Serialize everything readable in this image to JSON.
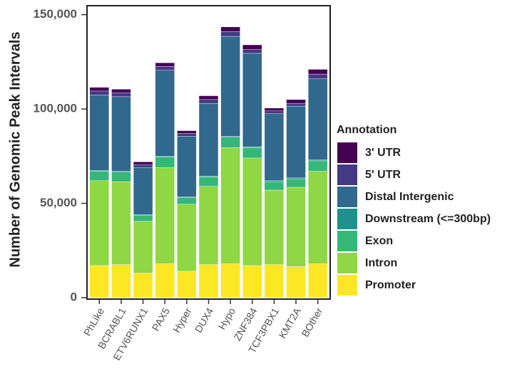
{
  "chart_data": {
    "type": "stacked_bar",
    "y_label": "Number of Genomic Peak Intervals",
    "legend_title": "Annotation",
    "categories": [
      "PhLike",
      "BCRABL1",
      "ETV6RUNX1",
      "PAX5",
      "Hyper",
      "DUX4",
      "Hypo",
      "ZNF384",
      "TCF3PBX1",
      "KMT2A",
      "BOther"
    ],
    "series": [
      {
        "name": "Promoter",
        "color": "#fde725",
        "values": [
          17000,
          17500,
          13000,
          18000,
          14000,
          17500,
          18000,
          17000,
          17500,
          16500,
          18000
        ]
      },
      {
        "name": "Intron",
        "color": "#8fd744",
        "values": [
          45000,
          44000,
          27500,
          51000,
          35500,
          41500,
          61500,
          57000,
          39500,
          42000,
          49000
        ]
      },
      {
        "name": "Exon",
        "color": "#35b779",
        "values": [
          5000,
          5000,
          3000,
          5500,
          3500,
          5000,
          5500,
          5500,
          4500,
          4500,
          5500
        ]
      },
      {
        "name": "Downstream (<=300bp)",
        "color": "#21908c",
        "values": [
          500,
          500,
          500,
          500,
          500,
          500,
          500,
          500,
          500,
          500,
          500
        ]
      },
      {
        "name": "Distal Intergenic",
        "color": "#31688e",
        "values": [
          40000,
          39500,
          25000,
          45500,
          32000,
          38500,
          53000,
          49500,
          35500,
          38000,
          43000
        ]
      },
      {
        "name": "5' UTR",
        "color": "#443983",
        "values": [
          2000,
          2000,
          1500,
          2000,
          1500,
          2000,
          2500,
          2000,
          1500,
          1500,
          2500
        ]
      },
      {
        "name": "3' UTR",
        "color": "#440154",
        "values": [
          2000,
          2000,
          1500,
          2000,
          1500,
          2000,
          2500,
          2500,
          1500,
          2000,
          2500
        ]
      }
    ],
    "ylim": [
      0,
      154000
    ],
    "yticks": [
      0,
      {
        "value": 50000,
        "label": "50,000"
      },
      {
        "value": 100000,
        "label": "100,000"
      },
      {
        "value": 150000,
        "label": "150,000"
      }
    ]
  }
}
